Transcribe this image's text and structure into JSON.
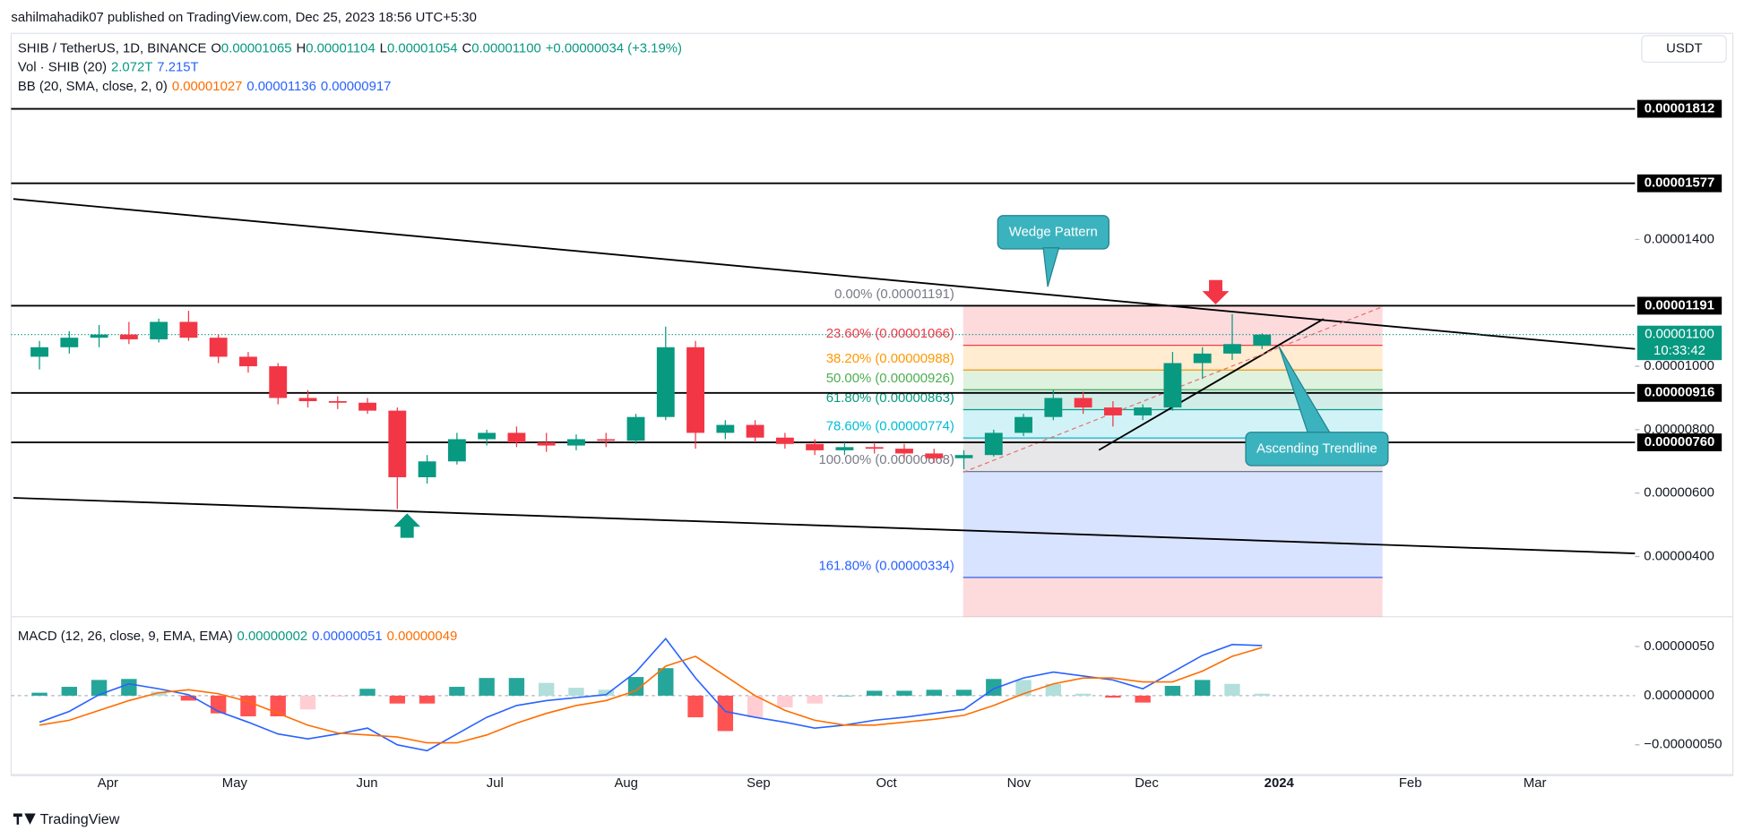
{
  "header": {
    "publisher": "sahilmahadik07 published on TradingView.com, Dec 25, 2023 18:56 UTC+5:30"
  },
  "currency_button": "USDT",
  "legend": [
    [
      {
        "text": "SHIB / TetherUS, 1D, BINANCE",
        "color": "#131722"
      },
      {
        "text": "O",
        "color": "#131722"
      },
      {
        "text": "0.00001065",
        "color": "#089981"
      },
      {
        "text": "H",
        "color": "#131722"
      },
      {
        "text": "0.00001104",
        "color": "#089981"
      },
      {
        "text": "L",
        "color": "#131722"
      },
      {
        "text": "0.00001054",
        "color": "#089981"
      },
      {
        "text": "C",
        "color": "#131722"
      },
      {
        "text": "0.00001100",
        "color": "#089981"
      },
      {
        "text": "+0.00000034 (+3.19%)",
        "color": "#089981"
      }
    ],
    [
      {
        "text": "Vol · SHIB (20)",
        "color": "#131722"
      },
      {
        "text": "2.072T",
        "color": "#089981"
      },
      {
        "text": "7.215T",
        "color": "#2962ff"
      }
    ],
    [
      {
        "text": "BB (20, SMA, close, 2, 0)",
        "color": "#131722"
      },
      {
        "text": "0.00001027",
        "color": "#ff6d00"
      },
      {
        "text": "0.00001136",
        "color": "#2962ff"
      },
      {
        "text": "0.00000917",
        "color": "#2962ff"
      }
    ]
  ],
  "price_axis": {
    "ylim": [
      2.1e-06,
      2.05e-05
    ],
    "ticks": [
      {
        "value": 1.4e-05,
        "label": "0.00001400"
      },
      {
        "value": 1e-05,
        "label": "0.00001000"
      },
      {
        "value": 8e-06,
        "label": "0.00000800"
      },
      {
        "value": 6e-06,
        "label": "0.00000600"
      },
      {
        "value": 4e-06,
        "label": "0.00000400"
      }
    ]
  },
  "levels": [
    {
      "value": 1.812e-05,
      "label": "0.00001812"
    },
    {
      "value": 1.577e-05,
      "label": "0.00001577"
    },
    {
      "value": 1.191e-05,
      "label": "0.00001191"
    },
    {
      "value": 9.16e-06,
      "label": "0.00000916"
    },
    {
      "value": 7.6e-06,
      "label": "0.00000760"
    }
  ],
  "current_price": {
    "value": 1.1e-05,
    "label": "0.00001100",
    "countdown": "10:33:42"
  },
  "fib_levels": [
    {
      "label": "0.00% (0.00001191)",
      "price": 1.191e-05,
      "color": "#787b86"
    },
    {
      "label": "23.60% (0.00001066)",
      "price": 1.066e-05,
      "color": "#f23645"
    },
    {
      "label": "38.20% (0.00000988)",
      "price": 9.88e-06,
      "color": "#ff9800"
    },
    {
      "label": "50.00% (0.00000926)",
      "price": 9.26e-06,
      "color": "#4caf50"
    },
    {
      "label": "61.80% (0.00000863)",
      "price": 8.63e-06,
      "color": "#089981"
    },
    {
      "label": "78.60% (0.00000774)",
      "price": 7.74e-06,
      "color": "#00bcd4"
    },
    {
      "label": "100.00% (0.00000668)",
      "price": 6.68e-06,
      "color": "#787b86"
    },
    {
      "label": "161.80% (0.00000334)",
      "price": 3.34e-06,
      "color": "#2962ff"
    }
  ],
  "candles": [
    {
      "o": 1.03e-05,
      "h": 1.08e-05,
      "l": 9.9e-06,
      "c": 1.06e-05
    },
    {
      "o": 1.06e-05,
      "h": 1.11e-05,
      "l": 1.04e-05,
      "c": 1.09e-05
    },
    {
      "o": 1.09e-05,
      "h": 1.13e-05,
      "l": 1.06e-05,
      "c": 1.1e-05
    },
    {
      "o": 1.1e-05,
      "h": 1.14e-05,
      "l": 1.07e-05,
      "c": 1.085e-05
    },
    {
      "o": 1.085e-05,
      "h": 1.15e-05,
      "l": 1.075e-05,
      "c": 1.14e-05
    },
    {
      "o": 1.14e-05,
      "h": 1.175e-05,
      "l": 1.08e-05,
      "c": 1.09e-05
    },
    {
      "o": 1.09e-05,
      "h": 1.1e-05,
      "l": 1.01e-05,
      "c": 1.03e-05
    },
    {
      "o": 1.03e-05,
      "h": 1.045e-05,
      "l": 9.8e-06,
      "c": 1e-05
    },
    {
      "o": 1e-05,
      "h": 1.01e-05,
      "l": 8.8e-06,
      "c": 9e-06
    },
    {
      "o": 9e-06,
      "h": 9.25e-06,
      "l": 8.7e-06,
      "c": 8.9e-06
    },
    {
      "o": 8.9e-06,
      "h": 9.05e-06,
      "l": 8.65e-06,
      "c": 8.85e-06
    },
    {
      "o": 8.85e-06,
      "h": 9e-06,
      "l": 8.5e-06,
      "c": 8.6e-06
    },
    {
      "o": 8.6e-06,
      "h": 8.7e-06,
      "l": 5.5e-06,
      "c": 6.5e-06
    },
    {
      "o": 6.5e-06,
      "h": 7.2e-06,
      "l": 6.3e-06,
      "c": 7e-06
    },
    {
      "o": 7e-06,
      "h": 7.9e-06,
      "l": 6.9e-06,
      "c": 7.7e-06
    },
    {
      "o": 7.7e-06,
      "h": 8e-06,
      "l": 7.5e-06,
      "c": 7.9e-06
    },
    {
      "o": 7.9e-06,
      "h": 8.1e-06,
      "l": 7.45e-06,
      "c": 7.6e-06
    },
    {
      "o": 7.6e-06,
      "h": 7.9e-06,
      "l": 7.3e-06,
      "c": 7.5e-06
    },
    {
      "o": 7.5e-06,
      "h": 7.85e-06,
      "l": 7.35e-06,
      "c": 7.7e-06
    },
    {
      "o": 7.7e-06,
      "h": 7.9e-06,
      "l": 7.45e-06,
      "c": 7.65e-06
    },
    {
      "o": 7.65e-06,
      "h": 8.5e-06,
      "l": 7.55e-06,
      "c": 8.4e-06
    },
    {
      "o": 8.4e-06,
      "h": 1.125e-05,
      "l": 8.3e-06,
      "c": 1.06e-05
    },
    {
      "o": 1.06e-05,
      "h": 1.08e-05,
      "l": 7.4e-06,
      "c": 7.9e-06
    },
    {
      "o": 7.9e-06,
      "h": 8.3e-06,
      "l": 7.7e-06,
      "c": 8.15e-06
    },
    {
      "o": 8.15e-06,
      "h": 8.3e-06,
      "l": 7.6e-06,
      "c": 7.75e-06
    },
    {
      "o": 7.75e-06,
      "h": 7.9e-06,
      "l": 7.4e-06,
      "c": 7.55e-06
    },
    {
      "o": 7.55e-06,
      "h": 7.7e-06,
      "l": 7.2e-06,
      "c": 7.35e-06
    },
    {
      "o": 7.35e-06,
      "h": 7.6e-06,
      "l": 7.2e-06,
      "c": 7.45e-06
    },
    {
      "o": 7.45e-06,
      "h": 7.6e-06,
      "l": 7.25e-06,
      "c": 7.4e-06
    },
    {
      "o": 7.4e-06,
      "h": 7.55e-06,
      "l": 7.1e-06,
      "c": 7.25e-06
    },
    {
      "o": 7.25e-06,
      "h": 7.4e-06,
      "l": 6.95e-06,
      "c": 7.1e-06
    },
    {
      "o": 7.1e-06,
      "h": 7.35e-06,
      "l": 6.75e-06,
      "c": 7.2e-06
    },
    {
      "o": 7.2e-06,
      "h": 8e-06,
      "l": 7.15e-06,
      "c": 7.9e-06
    },
    {
      "o": 7.9e-06,
      "h": 8.5e-06,
      "l": 7.8e-06,
      "c": 8.4e-06
    },
    {
      "o": 8.4e-06,
      "h": 9.25e-06,
      "l": 8.3e-06,
      "c": 9e-06
    },
    {
      "o": 9e-06,
      "h": 9.2e-06,
      "l": 8.5e-06,
      "c": 8.7e-06
    },
    {
      "o": 8.7e-06,
      "h": 8.9e-06,
      "l": 8.1e-06,
      "c": 8.45e-06
    },
    {
      "o": 8.45e-06,
      "h": 8.8e-06,
      "l": 8.3e-06,
      "c": 8.7e-06
    },
    {
      "o": 8.7e-06,
      "h": 1.045e-05,
      "l": 8.6e-06,
      "c": 1.01e-05
    },
    {
      "o": 1.01e-05,
      "h": 1.06e-05,
      "l": 9.6e-06,
      "c": 1.04e-05
    },
    {
      "o": 1.04e-05,
      "h": 1.165e-05,
      "l": 1.02e-05,
      "c": 1.07e-05
    },
    {
      "o": 1.065e-05,
      "h": 1.104e-05,
      "l": 1.054e-05,
      "c": 1.1e-05
    }
  ],
  "candle_colors": {
    "up": "#089981",
    "down": "#f23645"
  },
  "annotations": {
    "wedge": "Wedge Pattern",
    "trendline": "Ascending Trendline"
  },
  "macd": {
    "legend": [
      {
        "text": "MACD (12, 26, close, 9, EMA, EMA)",
        "color": "#131722"
      },
      {
        "text": "0.00000002",
        "color": "#089981"
      },
      {
        "text": "0.00000051",
        "color": "#2962ff"
      },
      {
        "text": "0.00000049",
        "color": "#ff6d00"
      }
    ],
    "ylim": [
      -7.8e-07,
      6.9e-07
    ],
    "ticks": [
      {
        "value": 5e-07,
        "label": "0.00000050"
      },
      {
        "value": 0,
        "label": "0.00000000"
      },
      {
        "value": -5e-07,
        "label": "−0.00000050"
      }
    ],
    "macd": [
      -2.7e-07,
      -1.6e-07,
      1e-08,
      1.2e-07,
      7e-08,
      1e-08,
      -1.6e-07,
      -2.7e-07,
      -3.9e-07,
      -4.4e-07,
      -3.9e-07,
      -3.3e-07,
      -5e-07,
      -5.6e-07,
      -3.9e-07,
      -2.2e-07,
      -1e-07,
      -5e-08,
      -2e-08,
      1e-08,
      2.4e-07,
      5.8e-07,
      1.8e-07,
      -1.6e-07,
      -2.2e-07,
      -2.7e-07,
      -3.3e-07,
      -3e-07,
      -2.5e-07,
      -2.2e-07,
      -1.8e-07,
      -1.4e-07,
      7e-08,
      1.8e-07,
      2.4e-07,
      2e-07,
      1.6e-07,
      7e-08,
      2.4e-07,
      4.1e-07,
      5.2e-07,
      5.1e-07
    ],
    "signal": [
      -3e-07,
      -2.5e-07,
      -1.5e-07,
      -5e-08,
      3e-08,
      6e-08,
      2e-08,
      -6e-08,
      -1.8e-07,
      -3e-07,
      -3.8e-07,
      -4e-07,
      -4.2e-07,
      -4.8e-07,
      -4.8e-07,
      -4e-07,
      -2.8e-07,
      -1.8e-07,
      -1e-07,
      -5e-08,
      5e-08,
      3e-07,
      4e-07,
      2e-07,
      0,
      -1.5e-07,
      -2.5e-07,
      -3e-07,
      -3e-07,
      -2.7e-07,
      -2.4e-07,
      -2e-07,
      -1e-07,
      2e-08,
      1.2e-07,
      1.8e-07,
      1.8e-07,
      1.4e-07,
      1.4e-07,
      2.5e-07,
      4e-07,
      4.9e-07
    ],
    "histogram": [
      3e-08,
      9e-08,
      1.6e-07,
      1.7e-07,
      4e-08,
      -5e-08,
      -1.8e-07,
      -2.1e-07,
      -2.1e-07,
      -1.4e-07,
      -1e-08,
      7e-08,
      -8e-08,
      -8e-08,
      9e-08,
      1.8e-07,
      1.8e-07,
      1.3e-07,
      8e-08,
      6e-08,
      1.9e-07,
      2.8e-07,
      -2.2e-07,
      -3.6e-07,
      -2.2e-07,
      -1.2e-07,
      -8e-08,
      0,
      5e-08,
      5e-08,
      6e-08,
      6e-08,
      1.7e-07,
      1.6e-07,
      1.2e-07,
      2e-08,
      -2e-08,
      -7e-08,
      1e-07,
      1.6e-07,
      1.2e-07,
      2e-08
    ],
    "macd_color": "#2962ff",
    "signal_color": "#ff6d00"
  },
  "time_axis": [
    "Apr",
    "May",
    "Jun",
    "Jul",
    "Aug",
    "Sep",
    "Oct",
    "Nov",
    "Dec",
    "2024",
    "Feb",
    "Mar"
  ],
  "footer": "TradingView"
}
